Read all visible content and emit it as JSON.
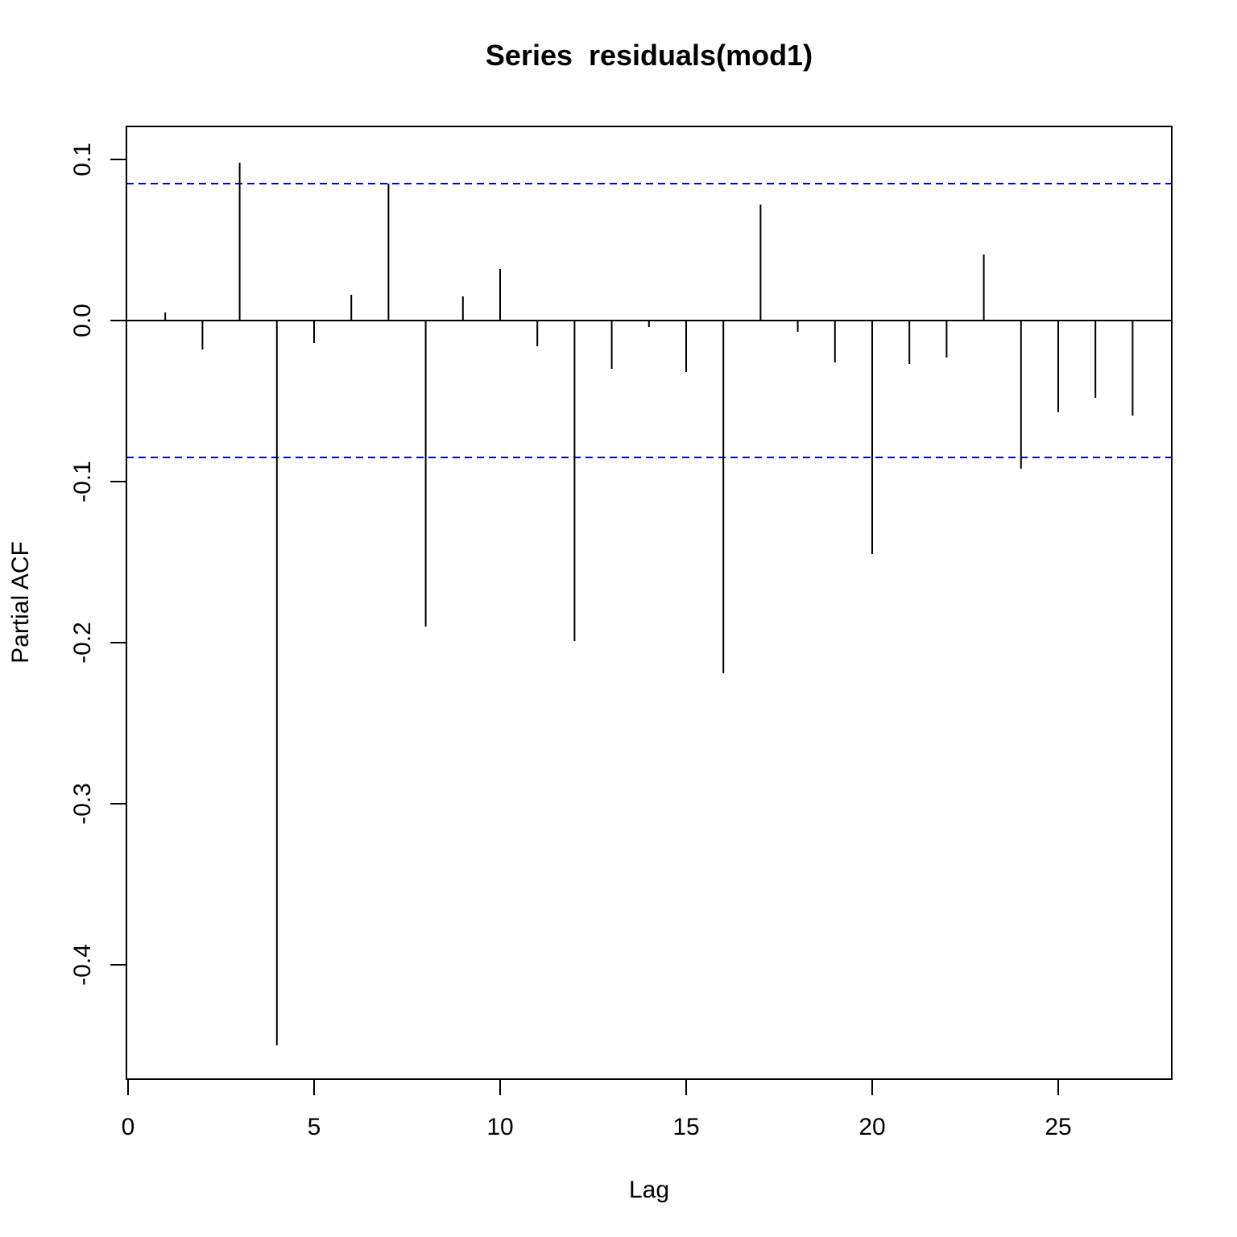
{
  "chart_data": {
    "type": "bar",
    "title": "Series  residuals(mod1)",
    "xlabel": "Lag",
    "ylabel": "Partial ACF",
    "xlim": [
      0,
      28
    ],
    "ylim": [
      -0.47,
      0.12
    ],
    "x_ticks": [
      0,
      5,
      10,
      15,
      20,
      25
    ],
    "x_tick_labels": [
      "0",
      "5",
      "10",
      "15",
      "20",
      "25"
    ],
    "y_ticks": [
      0.1,
      0.0,
      -0.1,
      -0.2,
      -0.3,
      -0.4
    ],
    "y_tick_labels": [
      "0.1",
      "0.0",
      "-0.1",
      "-0.2",
      "-0.3",
      "-0.4"
    ],
    "grid": false,
    "zero_line": true,
    "confidence_bounds": {
      "upper": 0.085,
      "lower": -0.085,
      "color": "#0000CC",
      "style": "dashed"
    },
    "bar_color": "#000000",
    "series": [
      {
        "x": [
          1,
          2,
          3,
          4,
          5,
          6,
          7,
          8,
          9,
          10,
          11,
          12,
          13,
          14,
          15,
          16,
          17,
          18,
          19,
          20,
          21,
          22,
          23,
          24,
          25,
          26,
          27
        ],
        "values": [
          0.005,
          -0.018,
          0.098,
          -0.45,
          -0.014,
          0.016,
          0.085,
          -0.19,
          0.015,
          0.032,
          -0.016,
          -0.199,
          -0.03,
          -0.004,
          -0.032,
          -0.219,
          0.072,
          -0.007,
          -0.026,
          -0.145,
          -0.027,
          -0.023,
          0.041,
          -0.092,
          -0.057,
          -0.048,
          -0.059
        ]
      }
    ]
  }
}
